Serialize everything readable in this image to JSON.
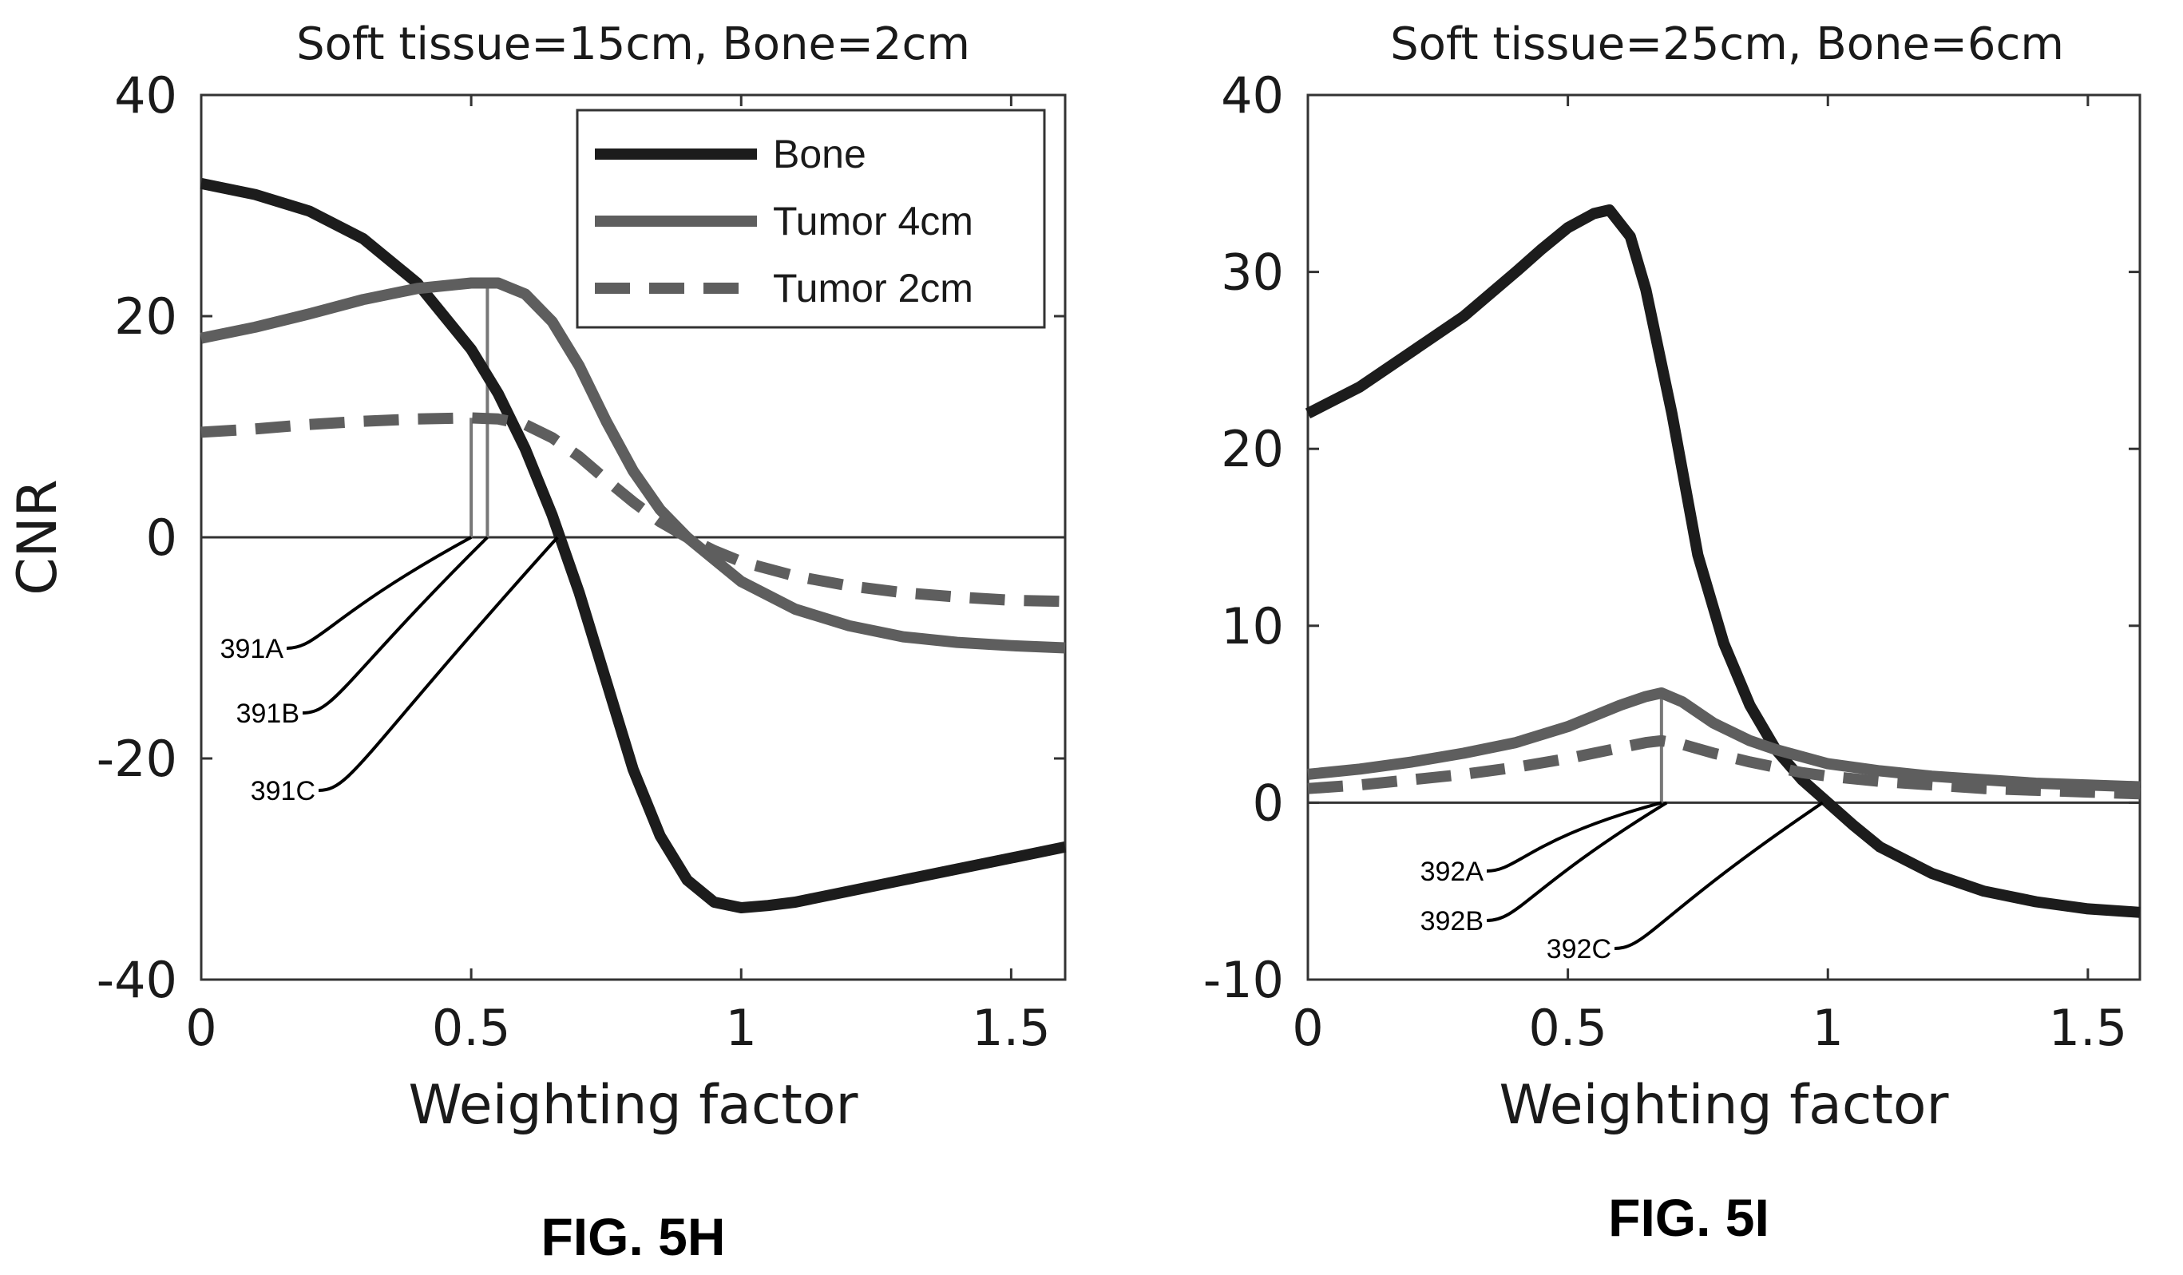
{
  "colors": {
    "bone": "#1c1c1c",
    "tumor_4cm": "#5e5e5e",
    "tumor_2cm": "#5e5e5e",
    "axis": "#333333",
    "annotation": "#000000"
  },
  "chart_data": [
    {
      "type": "line",
      "title": "Soft tissue=15cm, Bone=2cm",
      "xlabel": "Weighting factor",
      "ylabel": "CNR",
      "xlim": [
        0,
        1.6
      ],
      "ylim": [
        -40,
        40
      ],
      "xticks": [
        0,
        0.5,
        1,
        1.5
      ],
      "xtick_labels": [
        "0",
        "0.5",
        "1",
        "1.5"
      ],
      "yticks": [
        -40,
        -20,
        0,
        20,
        40
      ],
      "ytick_labels": [
        "-40",
        "-20",
        "0",
        "20",
        "40"
      ],
      "legend": "top-right",
      "grid": false,
      "series": [
        {
          "name": "Bone",
          "style": "solid",
          "color": "bone",
          "x": [
            0,
            0.1,
            0.2,
            0.3,
            0.4,
            0.5,
            0.55,
            0.6,
            0.65,
            0.7,
            0.75,
            0.8,
            0.85,
            0.9,
            0.95,
            1.0,
            1.05,
            1.1,
            1.2,
            1.3,
            1.4,
            1.5,
            1.6
          ],
          "y": [
            32,
            31,
            29.5,
            27,
            23,
            17,
            13,
            8,
            2,
            -5,
            -13,
            -21,
            -27,
            -31,
            -33,
            -33.5,
            -33.3,
            -33,
            -32,
            -31,
            -30,
            -29,
            -28
          ]
        },
        {
          "name": "Tumor  4cm",
          "style": "solid",
          "color": "tumor_4cm",
          "x": [
            0,
            0.1,
            0.2,
            0.3,
            0.4,
            0.5,
            0.55,
            0.6,
            0.65,
            0.7,
            0.75,
            0.8,
            0.85,
            0.9,
            0.95,
            1.0,
            1.1,
            1.2,
            1.3,
            1.4,
            1.5,
            1.6
          ],
          "y": [
            18,
            19,
            20.2,
            21.5,
            22.5,
            23,
            23,
            22,
            19.5,
            15.5,
            10.5,
            6,
            2.5,
            0,
            -2,
            -4,
            -6.5,
            -8,
            -9,
            -9.5,
            -9.8,
            -10
          ]
        },
        {
          "name": "Tumor  2cm",
          "style": "dashed",
          "color": "tumor_2cm",
          "x": [
            0,
            0.1,
            0.2,
            0.3,
            0.4,
            0.5,
            0.55,
            0.6,
            0.65,
            0.7,
            0.75,
            0.8,
            0.85,
            0.9,
            0.95,
            1.0,
            1.1,
            1.2,
            1.3,
            1.4,
            1.5,
            1.6
          ],
          "y": [
            9.5,
            9.8,
            10.2,
            10.5,
            10.7,
            10.8,
            10.7,
            10.2,
            9,
            7.3,
            5.2,
            3.2,
            1.4,
            0,
            -1.2,
            -2.2,
            -3.5,
            -4.4,
            -5,
            -5.4,
            -5.7,
            -5.8
          ]
        }
      ],
      "vlines": [
        {
          "x": 0.5,
          "y0": 0,
          "y1": 10.8
        },
        {
          "x": 0.53,
          "y0": 0,
          "y1": 23
        }
      ],
      "annotations": [
        {
          "text": "391A",
          "x": 0.5,
          "y": 0
        },
        {
          "text": "391B",
          "x": 0.53,
          "y": 0
        },
        {
          "text": "391C",
          "x": 0.66,
          "y": 0
        }
      ],
      "caption": "FIG. 5H"
    },
    {
      "type": "line",
      "title": "Soft tissue=25cm, Bone=6cm",
      "xlabel": "Weighting factor",
      "ylabel": "",
      "xlim": [
        0,
        1.6
      ],
      "ylim": [
        -10,
        40
      ],
      "xticks": [
        0,
        0.5,
        1,
        1.5
      ],
      "xtick_labels": [
        "0",
        "0.5",
        "1",
        "1.5"
      ],
      "yticks": [
        -10,
        0,
        10,
        20,
        30,
        40
      ],
      "ytick_labels": [
        "-10",
        "0",
        "10",
        "20",
        "30",
        "40"
      ],
      "grid": false,
      "series": [
        {
          "name": "Bone",
          "style": "solid",
          "color": "bone",
          "x": [
            0,
            0.1,
            0.2,
            0.3,
            0.4,
            0.45,
            0.5,
            0.55,
            0.58,
            0.62,
            0.65,
            0.7,
            0.75,
            0.8,
            0.85,
            0.9,
            0.95,
            1.0,
            1.05,
            1.1,
            1.2,
            1.3,
            1.4,
            1.5,
            1.6
          ],
          "y": [
            22,
            23.5,
            25.5,
            27.5,
            30,
            31.3,
            32.5,
            33.3,
            33.5,
            32,
            29,
            22,
            14,
            9,
            5.5,
            3,
            1.3,
            0,
            -1.3,
            -2.5,
            -4,
            -5,
            -5.6,
            -6,
            -6.2
          ]
        },
        {
          "name": "Tumor  4cm",
          "style": "solid",
          "color": "tumor_4cm",
          "x": [
            0,
            0.1,
            0.2,
            0.3,
            0.4,
            0.5,
            0.55,
            0.6,
            0.65,
            0.68,
            0.72,
            0.78,
            0.85,
            0.9,
            0.95,
            1.0,
            1.1,
            1.2,
            1.3,
            1.4,
            1.5,
            1.6
          ],
          "y": [
            1.6,
            1.9,
            2.3,
            2.8,
            3.4,
            4.3,
            4.9,
            5.5,
            6,
            6.2,
            5.7,
            4.5,
            3.5,
            3,
            2.6,
            2.2,
            1.8,
            1.5,
            1.3,
            1.1,
            1,
            0.9
          ]
        },
        {
          "name": "Tumor  2cm",
          "style": "dashed",
          "color": "tumor_2cm",
          "x": [
            0,
            0.1,
            0.2,
            0.3,
            0.4,
            0.5,
            0.55,
            0.6,
            0.65,
            0.68,
            0.72,
            0.78,
            0.85,
            0.9,
            0.95,
            1.0,
            1.1,
            1.2,
            1.3,
            1.4,
            1.5,
            1.6
          ],
          "y": [
            0.8,
            1,
            1.3,
            1.6,
            2,
            2.5,
            2.8,
            3.1,
            3.4,
            3.5,
            3.3,
            2.8,
            2.3,
            2,
            1.7,
            1.5,
            1.2,
            1,
            0.8,
            0.7,
            0.6,
            0.5
          ]
        }
      ],
      "vlines": [
        {
          "x": 0.68,
          "y0": 0,
          "y1": 6.2
        }
      ],
      "annotations": [
        {
          "text": "392A",
          "x": 0.68,
          "y": 0
        },
        {
          "text": "392B",
          "x": 0.69,
          "y": 0
        },
        {
          "text": "392C",
          "x": 0.99,
          "y": 0
        }
      ],
      "caption": "FIG. 5I"
    }
  ]
}
